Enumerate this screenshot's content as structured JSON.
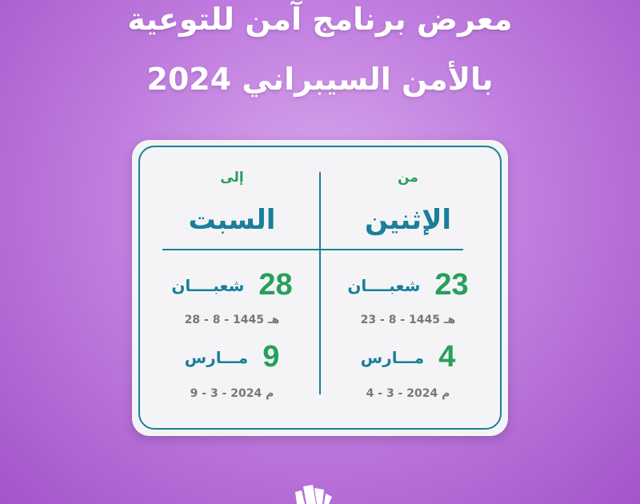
{
  "title": {
    "line1": "معرض برنامج آمن للتوعية",
    "line2": "بالأمن السيبراني 2024"
  },
  "from": {
    "label": "من",
    "day": "الإثنين",
    "hijri_day": "23",
    "hijri_month": "شعبــــان",
    "hijri_date": "هـ  1445 - 8 - 23",
    "greg_day": "4",
    "greg_month": "مـــارس",
    "greg_date": "م  2024 - 3 - 4"
  },
  "to": {
    "label": "إلى",
    "day": "السبت",
    "hijri_day": "28",
    "hijri_month": "شعبــــان",
    "hijri_date": "هـ  1445 - 8 - 28",
    "greg_day": "9",
    "greg_month": "مـــارس",
    "greg_date": "م  2024 - 3 - 9"
  },
  "colors": {
    "accent_green": "#27a05a",
    "accent_teal": "#1a7f99",
    "background": "#b56fd8"
  }
}
